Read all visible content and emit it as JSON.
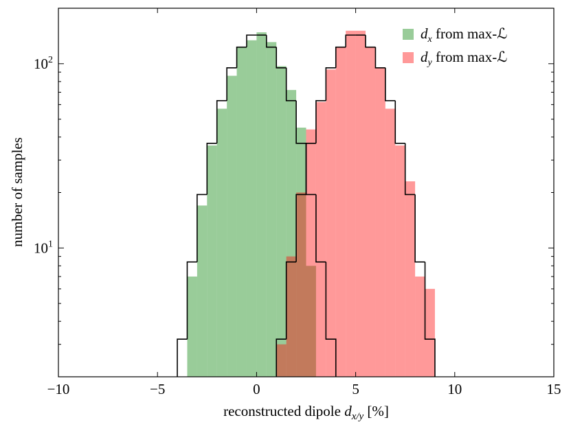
{
  "chart_data": {
    "type": "histogram",
    "xlabel": [
      "reconstructed dipole ",
      "d",
      "x/y",
      " [%]"
    ],
    "ylabel": "number of samples",
    "xlim": [
      -10,
      15
    ],
    "xticks": [
      {
        "value": -10,
        "label": "−10"
      },
      {
        "value": -5,
        "label": "−5"
      },
      0,
      5,
      10,
      15
    ],
    "ylim": [
      2,
      200
    ],
    "log_y": true,
    "yticks": [
      {
        "value": 10,
        "label": [
          "10",
          "1"
        ]
      },
      {
        "value": 100,
        "label": [
          "10",
          "2"
        ]
      }
    ],
    "yminor": [
      3,
      4,
      5,
      6,
      7,
      8,
      9,
      20,
      30,
      40,
      50,
      60,
      70,
      80,
      90
    ],
    "alpha": 0.4,
    "legend": "upper right",
    "series": [
      {
        "name": [
          "d",
          "x",
          " from max-ℒ"
        ],
        "color": "green",
        "style": "filled",
        "bins": [
          -3.5,
          -3,
          -2.5,
          -2,
          -1.5,
          -1,
          -0.5,
          0,
          0.5,
          1,
          1.5,
          2,
          2.5,
          3
        ],
        "values": [
          7,
          17,
          36,
          57,
          86,
          123,
          134,
          148,
          131,
          97,
          72,
          45,
          8
        ]
      },
      {
        "name": [
          "d",
          "y",
          " from max-ℒ"
        ],
        "color": "red",
        "style": "filled",
        "bins": [
          1,
          1.5,
          2,
          2.5,
          3,
          3.5,
          4,
          4.5,
          5,
          5.5,
          6,
          6.5,
          7,
          7.5,
          8,
          8.5,
          9
        ],
        "values": [
          3,
          9,
          20,
          44,
          62,
          93,
          123,
          151,
          151,
          123,
          95,
          57,
          36,
          23,
          7,
          6
        ]
      },
      {
        "color": "black",
        "style": "step",
        "bins": [
          -4,
          -3.5,
          -3,
          -2.5,
          -2,
          -1.5,
          -1,
          -0.5,
          0,
          0.5,
          1,
          1.5,
          2,
          2.5,
          3,
          3.5,
          4
        ],
        "values": [
          3.2,
          8.4,
          19.5,
          37,
          63,
          95,
          123,
          143,
          143,
          123,
          95,
          63,
          37,
          19.5,
          8.4,
          3.2
        ]
      },
      {
        "color": "black",
        "style": "step",
        "bins": [
          1,
          1.5,
          2,
          2.5,
          3,
          3.5,
          4,
          4.5,
          5,
          5.5,
          6,
          6.5,
          7,
          7.5,
          8,
          8.5,
          9
        ],
        "values": [
          3.2,
          8.4,
          19.5,
          37,
          63,
          95,
          123,
          143,
          143,
          123,
          95,
          63,
          37,
          19.5,
          8.4,
          3.2
        ]
      }
    ]
  }
}
